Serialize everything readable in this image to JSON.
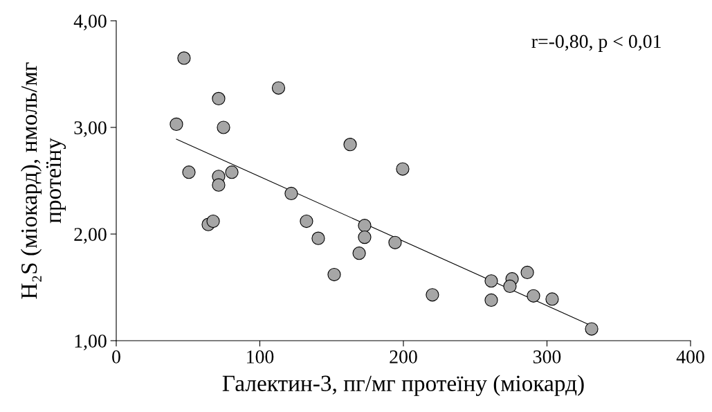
{
  "chart_data": {
    "type": "scatter",
    "xlabel": "Галектин-3, пг/мг протеїну (міокард)",
    "ylabel": "H₂S (міокард), нмоль/мг\nпротеїну",
    "annotations": [
      "r=-0,80, p < 0,01"
    ],
    "series": [
      {
        "color": "#a6a6a6",
        "marker": "circle",
        "x": [
          47.2,
          41.9,
          71.3,
          74.7,
          50.6,
          80.5,
          71.3,
          71.3,
          64.1,
          67.5,
          113.0,
          121.9,
          132.5,
          140.7,
          151.8,
          162.9,
          173.0,
          173.0,
          169.2,
          199.5,
          194.2,
          220.2,
          261.2,
          261.2,
          275.7,
          274.2,
          286.3,
          290.6,
          303.6,
          331.1
        ],
        "values": [
          3.65,
          3.03,
          3.27,
          3.0,
          2.58,
          2.58,
          2.54,
          2.46,
          2.09,
          2.12,
          3.37,
          2.38,
          2.12,
          1.96,
          1.62,
          2.84,
          2.08,
          1.97,
          1.82,
          2.61,
          1.92,
          1.43,
          1.56,
          1.38,
          1.58,
          1.51,
          1.64,
          1.42,
          1.39,
          1.11
        ]
      },
      {
        "type": "line",
        "color": "#000000",
        "x": [
          41.9,
          331.1
        ],
        "values": [
          2.89,
          1.14
        ]
      }
    ],
    "xlim": [
      0,
      400
    ],
    "xticks": [
      0,
      100,
      200,
      300,
      400
    ],
    "ylim": [
      1,
      4
    ],
    "yticks": [
      {
        "value": 1,
        "label": "1,00"
      },
      {
        "value": 2,
        "label": "2,00"
      },
      {
        "value": 3,
        "label": "3,00"
      },
      {
        "value": 4,
        "label": "4,00"
      }
    ],
    "grid": false,
    "legend": false
  }
}
